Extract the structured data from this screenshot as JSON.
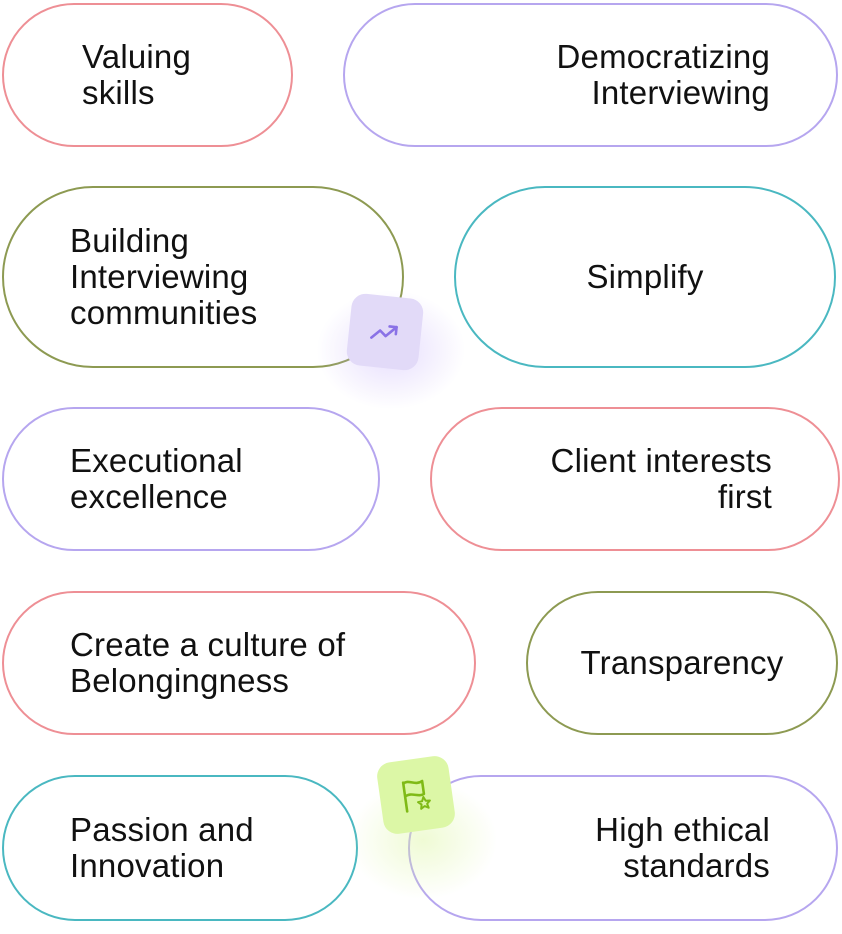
{
  "colors": {
    "pink": "#ee8f95",
    "lavender": "#b6a6ef",
    "olive": "#8d9a52",
    "teal": "#4ab8c1",
    "badge_purple_bg": "#e2daf8",
    "badge_purple_icon": "#8a72e6",
    "badge_green_bg": "#dcf7a6",
    "badge_green_icon": "#7fba16"
  },
  "values": [
    {
      "label": "Valuing\nskills"
    },
    {
      "label": "Democratizing\nInterviewing"
    },
    {
      "label": "Building\nInterviewing\ncommunities"
    },
    {
      "label": "Simplify"
    },
    {
      "label": "Executional\nexcellence"
    },
    {
      "label": "Client interests\nfirst"
    },
    {
      "label": "Create a culture of\nBelongingness"
    },
    {
      "label": "Transparency"
    },
    {
      "label": "Passion and\nInnovation"
    },
    {
      "label": "High ethical\nstandards"
    }
  ],
  "icons": {
    "trend": "trending-up-icon",
    "flag": "flag-star-icon"
  }
}
